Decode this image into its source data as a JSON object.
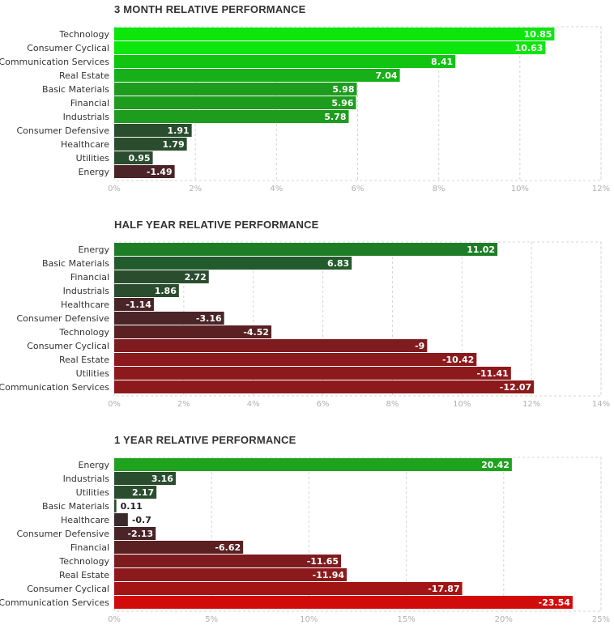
{
  "chart_data": [
    {
      "type": "bar",
      "orientation": "horizontal",
      "title": "3 MONTH RELATIVE PERFORMANCE",
      "categories": [
        "Technology",
        "Consumer Cyclical",
        "Communication Services",
        "Real Estate",
        "Basic Materials",
        "Financial",
        "Industrials",
        "Consumer Defensive",
        "Healthcare",
        "Utilities",
        "Energy"
      ],
      "values": [
        10.85,
        10.63,
        8.41,
        7.04,
        5.98,
        5.96,
        5.78,
        1.91,
        1.79,
        0.95,
        -1.49
      ],
      "value_labels": [
        "10.85",
        "10.63",
        "8.41",
        "7.04",
        "5.98",
        "5.96",
        "5.78",
        "1.91",
        "1.79",
        "0.95",
        "-1.49"
      ],
      "xlim": [
        0,
        12
      ],
      "xticks": [
        0,
        2,
        4,
        6,
        8,
        10,
        12
      ],
      "xtick_labels": [
        "0%",
        "2%",
        "4%",
        "6%",
        "8%",
        "10%",
        "12%"
      ],
      "colors": [
        "#0ce60c",
        "#0ce60c",
        "#11c411",
        "#18b018",
        "#1e9c1e",
        "#1e9c1e",
        "#1e9c1e",
        "#2a4d2e",
        "#2a4d2e",
        "#2a4d2e",
        "#4a2426"
      ],
      "grid": true
    },
    {
      "type": "bar",
      "orientation": "horizontal",
      "title": "HALF YEAR RELATIVE PERFORMANCE",
      "categories": [
        "Energy",
        "Basic Materials",
        "Financial",
        "Industrials",
        "Healthcare",
        "Consumer Defensive",
        "Technology",
        "Consumer Cyclical",
        "Real Estate",
        "Utilities",
        "Communication Services"
      ],
      "values": [
        11.02,
        6.83,
        2.72,
        1.86,
        -1.14,
        -3.16,
        -4.52,
        -9,
        -10.42,
        -11.41,
        -12.07
      ],
      "value_labels": [
        "11.02",
        "6.83",
        "2.72",
        "1.86",
        "-1.14",
        "-3.16",
        "-4.52",
        "-9",
        "-10.42",
        "-11.41",
        "-12.07"
      ],
      "xlim": [
        0,
        14
      ],
      "xticks": [
        0,
        2,
        4,
        6,
        8,
        10,
        12,
        14
      ],
      "xtick_labels": [
        "0%",
        "2%",
        "4%",
        "6%",
        "8%",
        "10%",
        "12%",
        "14%"
      ],
      "colors": [
        "#1e7e27",
        "#235c2c",
        "#2a4d2e",
        "#2a4d2e",
        "#4a2426",
        "#4a2426",
        "#5a2022",
        "#7e1b1e",
        "#8c1a1c",
        "#8c1a1c",
        "#8c1a1c"
      ],
      "grid": true
    },
    {
      "type": "bar",
      "orientation": "horizontal",
      "title": "1 YEAR RELATIVE PERFORMANCE",
      "categories": [
        "Energy",
        "Industrials",
        "Utilities",
        "Basic Materials",
        "Healthcare",
        "Consumer Defensive",
        "Financial",
        "Technology",
        "Real Estate",
        "Consumer Cyclical",
        "Communication Services"
      ],
      "values": [
        20.42,
        3.16,
        2.17,
        0.11,
        -0.7,
        -2.13,
        -6.62,
        -11.65,
        -11.94,
        -17.87,
        -23.54
      ],
      "value_labels": [
        "20.42",
        "3.16",
        "2.17",
        "0.11",
        "-0.7",
        "-2.13",
        "-6.62",
        "-11.65",
        "-11.94",
        "-17.87",
        "-23.54"
      ],
      "xlim": [
        0,
        25
      ],
      "xticks": [
        0,
        5,
        10,
        15,
        20,
        25
      ],
      "xtick_labels": [
        "0%",
        "5%",
        "10%",
        "15%",
        "20%",
        "25%"
      ],
      "colors": [
        "#1fa31f",
        "#2a4d2e",
        "#2a4d2e",
        "#2a4d2e",
        "#3a2a2a",
        "#4a2426",
        "#5a2022",
        "#7e1b1e",
        "#8c1a1c",
        "#a31414",
        "#d10a0a"
      ],
      "grid": true
    }
  ]
}
